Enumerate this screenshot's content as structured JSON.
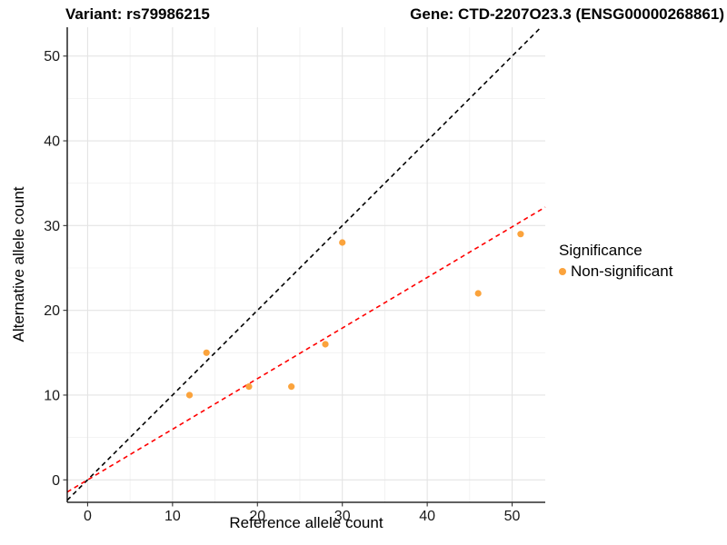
{
  "chart_data": {
    "type": "scatter",
    "title_left": "Variant: rs79986215",
    "title_right": "Gene: CTD-2207O23.3 (ENSG00000268861)",
    "xlabel": "Reference allele count",
    "ylabel": "Alternative allele count",
    "xlim": [
      -2.4,
      53.9
    ],
    "ylim": [
      -2.65,
      53.4
    ],
    "x_major_ticks": [
      0,
      10,
      20,
      30,
      40,
      50
    ],
    "x_minor_ticks": [
      5,
      15,
      25,
      35,
      45
    ],
    "y_major_ticks": [
      0,
      10,
      20,
      30,
      40,
      50
    ],
    "y_minor_ticks": [
      5,
      15,
      25,
      35,
      45
    ],
    "grid": true,
    "points": {
      "series_name": "Non-significant",
      "color": "#FBA33C",
      "marker_radius": 3.6,
      "data": [
        [
          12,
          10
        ],
        [
          14,
          15
        ],
        [
          19,
          11
        ],
        [
          24,
          11
        ],
        [
          28,
          16
        ],
        [
          30,
          28
        ],
        [
          46,
          22
        ],
        [
          51,
          29
        ]
      ]
    },
    "lines": [
      {
        "name": "identity-line",
        "slope": 1,
        "intercept": 0,
        "color": "#000000",
        "style": "dashed"
      },
      {
        "name": "fit-line",
        "slope": 0.597,
        "intercept": 0,
        "color": "#FF0000",
        "style": "dashed"
      }
    ],
    "legend": {
      "title": "Significance",
      "position": "right",
      "items": [
        {
          "label": "Non-significant",
          "color": "#FBA33C",
          "marker": "circle"
        }
      ]
    }
  }
}
